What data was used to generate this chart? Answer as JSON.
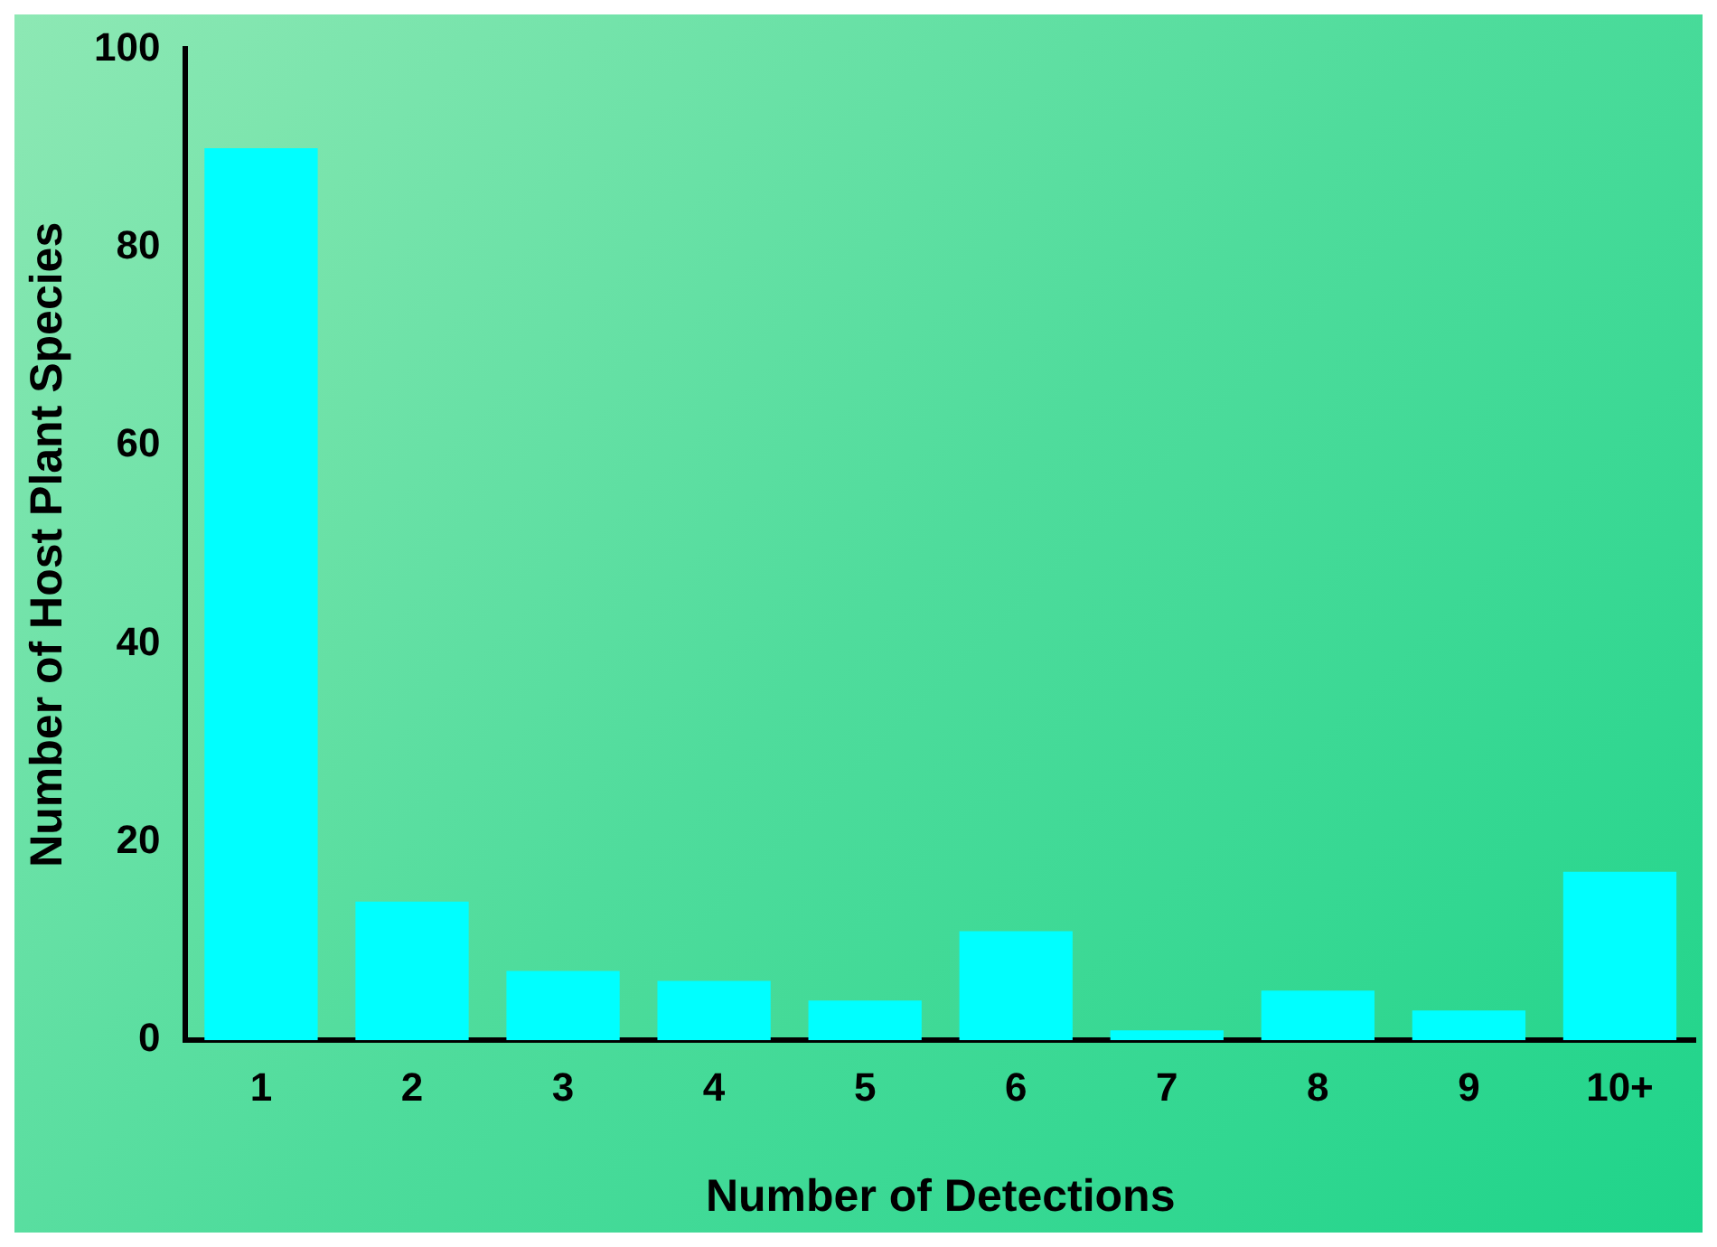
{
  "chart_data": {
    "type": "bar",
    "xlabel": "Number of Detections",
    "ylabel": "Number of Host Plant Species",
    "categories": [
      "1",
      "2",
      "3",
      "4",
      "5",
      "6",
      "7",
      "8",
      "9",
      "10+"
    ],
    "values": [
      90,
      14,
      7,
      6,
      4,
      11,
      1,
      5,
      3,
      17
    ],
    "color": "#00ffff",
    "ylim": [
      0,
      100
    ],
    "yticks": [
      0,
      20,
      40,
      60,
      80,
      100
    ],
    "grid": false,
    "legend": false
  }
}
